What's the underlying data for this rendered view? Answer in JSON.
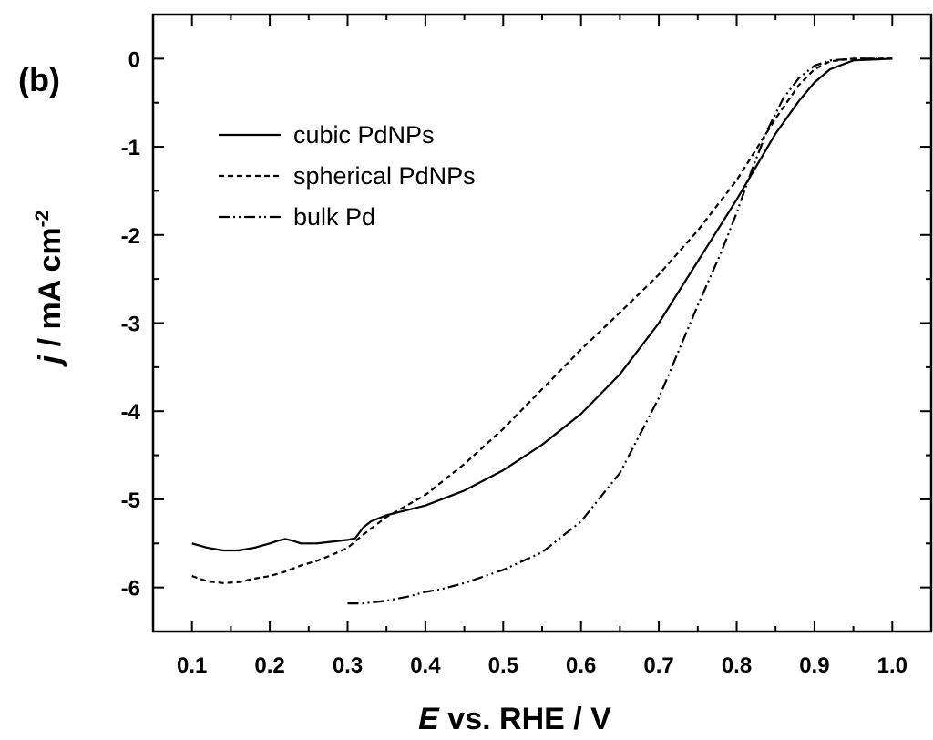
{
  "panel_label": "(b)",
  "chart_data": {
    "type": "line",
    "xlabel": {
      "italic": "E",
      "rest": " vs. RHE / V"
    },
    "ylabel": {
      "italic": "j",
      "rest": " / mA cm",
      "sup": "-2"
    },
    "xlim": [
      0.05,
      1.05
    ],
    "ylim": [
      -6.5,
      0.5
    ],
    "xticks": [
      0.1,
      0.2,
      0.3,
      0.4,
      0.5,
      0.6,
      0.7,
      0.8,
      0.9,
      1.0
    ],
    "xtick_labels": [
      "0.1",
      "0.2",
      "0.3",
      "0.4",
      "0.5",
      "0.6",
      "0.7",
      "0.8",
      "0.9",
      "1.0"
    ],
    "yticks": [
      0,
      -1,
      -2,
      -3,
      -4,
      -5,
      -6
    ],
    "ytick_labels": [
      "0",
      "-1",
      "-2",
      "-3",
      "-4",
      "-5",
      "-6"
    ],
    "legend_position": "top-left",
    "series": [
      {
        "name": "cubic PdNPs",
        "dash": "solid",
        "x": [
          0.1,
          0.12,
          0.14,
          0.16,
          0.18,
          0.2,
          0.21,
          0.22,
          0.23,
          0.24,
          0.26,
          0.28,
          0.3,
          0.31,
          0.32,
          0.33,
          0.35,
          0.4,
          0.45,
          0.5,
          0.55,
          0.6,
          0.65,
          0.7,
          0.75,
          0.8,
          0.85,
          0.88,
          0.9,
          0.92,
          0.95,
          1.0
        ],
        "y": [
          -5.5,
          -5.55,
          -5.58,
          -5.58,
          -5.55,
          -5.5,
          -5.47,
          -5.45,
          -5.47,
          -5.5,
          -5.5,
          -5.48,
          -5.46,
          -5.44,
          -5.32,
          -5.25,
          -5.18,
          -5.07,
          -4.9,
          -4.67,
          -4.38,
          -4.03,
          -3.58,
          -3.0,
          -2.3,
          -1.6,
          -0.85,
          -0.48,
          -0.27,
          -0.12,
          -0.02,
          0.0
        ]
      },
      {
        "name": "spherical PdNPs",
        "dash": "dashed",
        "x": [
          0.1,
          0.12,
          0.14,
          0.16,
          0.18,
          0.2,
          0.22,
          0.24,
          0.26,
          0.28,
          0.3,
          0.32,
          0.35,
          0.4,
          0.45,
          0.5,
          0.55,
          0.6,
          0.65,
          0.7,
          0.75,
          0.8,
          0.85,
          0.88,
          0.9,
          0.92,
          0.95,
          1.0
        ],
        "y": [
          -5.87,
          -5.93,
          -5.95,
          -5.94,
          -5.9,
          -5.87,
          -5.82,
          -5.75,
          -5.7,
          -5.63,
          -5.55,
          -5.4,
          -5.2,
          -4.95,
          -4.6,
          -4.2,
          -3.75,
          -3.3,
          -2.88,
          -2.45,
          -1.95,
          -1.38,
          -0.68,
          -0.3,
          -0.12,
          -0.03,
          0.0,
          0.0
        ]
      },
      {
        "name": "bulk Pd",
        "dash": "dashdotdot",
        "x": [
          0.3,
          0.32,
          0.35,
          0.38,
          0.4,
          0.42,
          0.45,
          0.5,
          0.55,
          0.6,
          0.65,
          0.7,
          0.75,
          0.78,
          0.8,
          0.82,
          0.84,
          0.86,
          0.88,
          0.9,
          0.92,
          0.95,
          1.0
        ],
        "y": [
          -6.18,
          -6.18,
          -6.15,
          -6.1,
          -6.05,
          -6.02,
          -5.95,
          -5.8,
          -5.6,
          -5.25,
          -4.7,
          -3.85,
          -2.8,
          -2.2,
          -1.75,
          -1.25,
          -0.8,
          -0.45,
          -0.22,
          -0.08,
          -0.02,
          0.0,
          0.0
        ]
      }
    ]
  }
}
